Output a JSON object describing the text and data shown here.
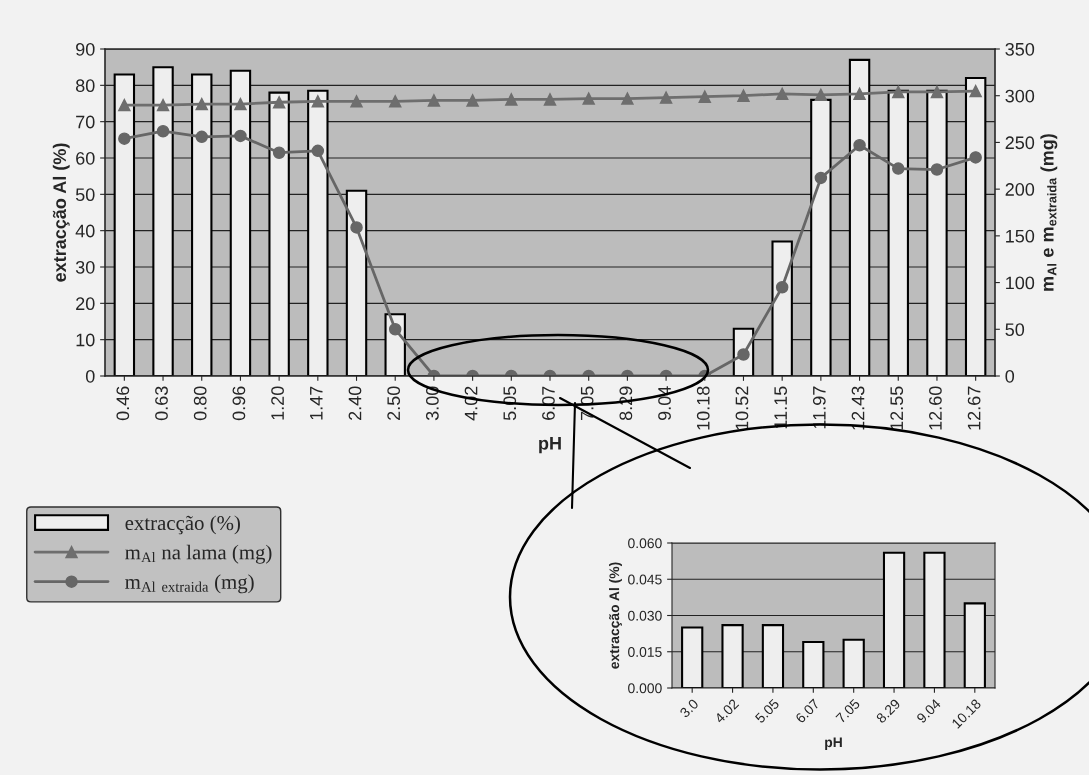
{
  "chart_data": [
    {
      "type": "bar",
      "categories": [
        "0.46",
        "0.63",
        "0.80",
        "0.96",
        "1.20",
        "1.47",
        "2.40",
        "2.50",
        "3.00",
        "4.02",
        "5.05",
        "6.07",
        "7.05",
        "8.29",
        "9.04",
        "10.18",
        "10.52",
        "11.15",
        "11.97",
        "12.43",
        "12.55",
        "12.60",
        "12.67"
      ],
      "series": [
        {
          "name": "extracção (%)",
          "type": "bar",
          "color": "#eeeeee",
          "values": [
            83,
            85,
            83,
            84,
            78,
            78.5,
            51,
            17,
            null,
            null,
            null,
            null,
            null,
            null,
            null,
            null,
            13,
            37,
            76,
            87,
            78.5,
            78.5,
            82
          ]
        },
        {
          "name": "m$_{Al}$ na lama (mg)",
          "type": "line",
          "axis": "y2",
          "marker": "triangle",
          "color": "#6e6e6e",
          "values": [
            290,
            290,
            291,
            291,
            293,
            294,
            294,
            294,
            295,
            295,
            296,
            296,
            297,
            297,
            298,
            299,
            300,
            302,
            301,
            302,
            304,
            304,
            305
          ]
        },
        {
          "name": "m$_{Al extraida}$ (mg)",
          "type": "line",
          "axis": "y2",
          "marker": "circle",
          "color": "#666666",
          "values": [
            254,
            262,
            256,
            257,
            239,
            241,
            159,
            50,
            0,
            0,
            0,
            0,
            0,
            0,
            0,
            0,
            23,
            95,
            212,
            247,
            222,
            221,
            234
          ]
        }
      ],
      "xlabel": "pH",
      "ylabel": "extracção Al (%)",
      "y2label": "m$_{Al}$ e m$_{extraida}$ (mg)",
      "ylim": [
        0,
        90
      ],
      "yticks": [
        0,
        10,
        20,
        30,
        40,
        50,
        60,
        70,
        80,
        90
      ],
      "y2lim": [
        0,
        350
      ],
      "y2ticks": [
        0,
        50,
        100,
        150,
        200,
        250,
        300,
        350
      ],
      "grid": "y",
      "legend": "bottom left"
    },
    {
      "type": "bar",
      "categories": [
        "3.0",
        "4.02",
        "5.05",
        "6.07",
        "7.05",
        "8.29",
        "9.04",
        "10.18"
      ],
      "values": [
        0.025,
        0.026,
        0.026,
        0.019,
        0.02,
        0.056,
        0.056,
        0.035
      ],
      "color": "#eeeeee",
      "xlabel": "pH",
      "ylabel": "extracção Al (%)",
      "ylim": [
        0,
        0.06
      ],
      "yticks": [
        {
          "value": 0,
          "label": "0.000"
        },
        {
          "value": 0.015,
          "label": "0.015"
        },
        {
          "value": 0.03,
          "label": "0.030"
        },
        {
          "value": 0.045,
          "label": "0.045"
        },
        {
          "value": 0.06,
          "label": "0.060"
        }
      ],
      "grid": "y"
    }
  ]
}
